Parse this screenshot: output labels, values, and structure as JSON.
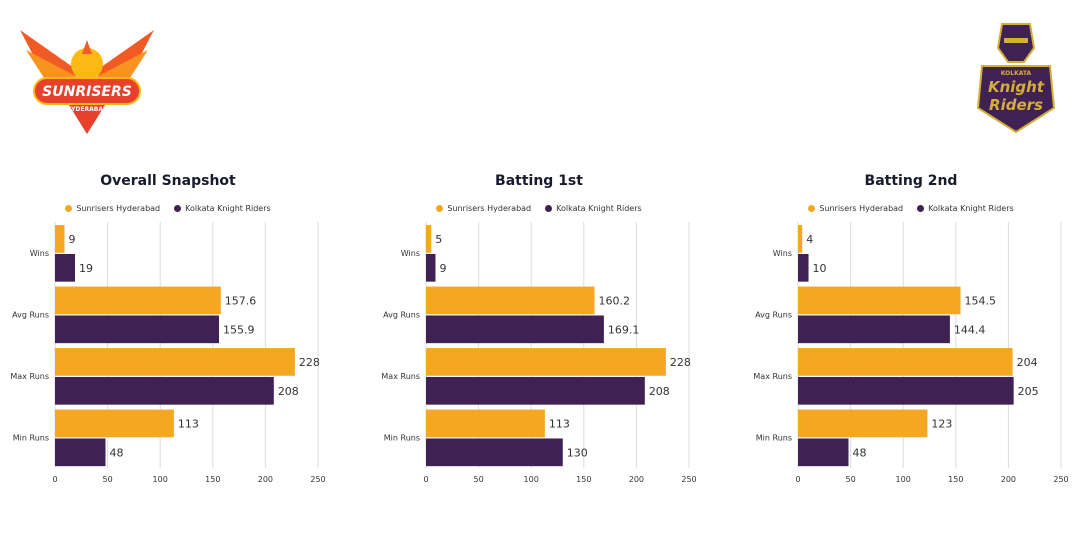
{
  "logos": {
    "left": {
      "text": "SUNRISERS",
      "subtext": "HYDERABAD"
    },
    "right": {
      "text_top": "KOLKATA",
      "text_main1": "Knight",
      "text_main2": "Riders"
    }
  },
  "colors": {
    "srh": "#F5A623",
    "kkr": "#3F2154",
    "grid": "#dddddd"
  },
  "chart_data": [
    {
      "type": "bar",
      "orientation": "horizontal",
      "title": "Overall Snapshot",
      "categories": [
        "Wins",
        "Avg Runs",
        "Max Runs",
        "Min Runs"
      ],
      "series": [
        {
          "name": "Sunrisers Hyderabad",
          "values": [
            9,
            157.6,
            228,
            113
          ]
        },
        {
          "name": "Kolkata Knight Riders",
          "values": [
            19,
            155.9,
            208,
            48
          ]
        }
      ],
      "xlim": [
        0,
        250
      ],
      "xticks": [
        0,
        50,
        100,
        150,
        200,
        250
      ],
      "grid": true,
      "legend": "top"
    },
    {
      "type": "bar",
      "orientation": "horizontal",
      "title": "Batting 1st",
      "categories": [
        "Wins",
        "Avg Runs",
        "Max Runs",
        "Min Runs"
      ],
      "series": [
        {
          "name": "Sunrisers Hyderabad",
          "values": [
            5,
            160.2,
            228,
            113
          ]
        },
        {
          "name": "Kolkata Knight Riders",
          "values": [
            9,
            169.1,
            208,
            130
          ]
        }
      ],
      "xlim": [
        0,
        250
      ],
      "xticks": [
        0,
        50,
        100,
        150,
        200,
        250
      ],
      "grid": true,
      "legend": "top"
    },
    {
      "type": "bar",
      "orientation": "horizontal",
      "title": "Batting 2nd",
      "categories": [
        "Wins",
        "Avg Runs",
        "Max Runs",
        "Min Runs"
      ],
      "series": [
        {
          "name": "Sunrisers Hyderabad",
          "values": [
            4,
            154.5,
            204,
            123
          ]
        },
        {
          "name": "Kolkata Knight Riders",
          "values": [
            10,
            144.4,
            205,
            48
          ]
        }
      ],
      "xlim": [
        0,
        250
      ],
      "xticks": [
        0,
        50,
        100,
        150,
        200,
        250
      ],
      "grid": true,
      "legend": "top"
    }
  ]
}
